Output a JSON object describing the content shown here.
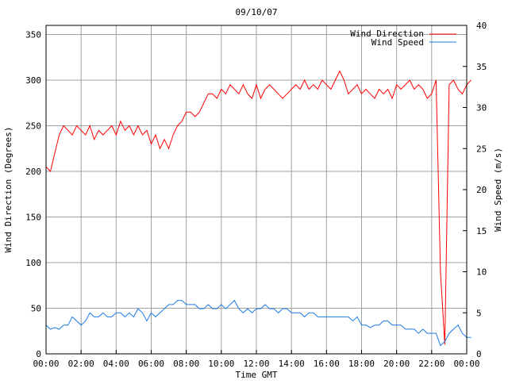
{
  "chart_data": {
    "type": "line",
    "title": "09/10/07",
    "xlabel": "Time GMT",
    "ylabel": "Wind Direction (Degrees)",
    "y2label": "Wind Speed (m/s)",
    "xlim": [
      0,
      24
    ],
    "ylim": [
      0,
      360
    ],
    "y2lim": [
      0,
      40
    ],
    "grid": true,
    "legend_position": "top-right",
    "x_ticks": [
      "00:00",
      "02:00",
      "04:00",
      "06:00",
      "08:00",
      "10:00",
      "12:00",
      "14:00",
      "16:00",
      "18:00",
      "20:00",
      "22:00",
      "00:00"
    ],
    "y_ticks": [
      0,
      50,
      100,
      150,
      200,
      250,
      300,
      350
    ],
    "y2_ticks": [
      0,
      5,
      10,
      15,
      20,
      25,
      30,
      35,
      40
    ],
    "x_step_hours": 0.25,
    "series": [
      {
        "name": "Wind Direction",
        "axis": "left",
        "color": "#ff0000",
        "values": [
          205,
          200,
          220,
          240,
          250,
          245,
          240,
          250,
          245,
          240,
          250,
          235,
          245,
          240,
          245,
          250,
          240,
          255,
          245,
          250,
          240,
          250,
          240,
          245,
          230,
          240,
          225,
          235,
          225,
          240,
          250,
          255,
          265,
          265,
          260,
          265,
          275,
          285,
          285,
          280,
          290,
          285,
          295,
          290,
          285,
          295,
          285,
          280,
          295,
          280,
          290,
          295,
          290,
          285,
          280,
          285,
          290,
          295,
          290,
          300,
          290,
          295,
          290,
          300,
          295,
          290,
          300,
          310,
          300,
          285,
          290,
          295,
          285,
          290,
          285,
          280,
          290,
          285,
          290,
          280,
          295,
          290,
          295,
          300,
          290,
          295,
          290,
          280,
          285,
          300,
          90,
          10,
          295,
          300,
          290,
          285,
          295,
          300
        ]
      },
      {
        "name": "Wind Speed",
        "axis": "right",
        "color": "#1a7ae8",
        "values": [
          3.5,
          3,
          3.2,
          3,
          3.5,
          3.5,
          4.5,
          4,
          3.5,
          4,
          5,
          4.5,
          4.5,
          5,
          4.5,
          4.5,
          5,
          5,
          4.5,
          5,
          4.5,
          5.5,
          5,
          4,
          5,
          4.5,
          5,
          5.5,
          6,
          6,
          6.5,
          6.5,
          6,
          6,
          6,
          5.5,
          5.5,
          6,
          5.5,
          5.5,
          6,
          5.5,
          6,
          6.5,
          5.5,
          5,
          5.5,
          5,
          5.5,
          5.5,
          6,
          5.5,
          5.5,
          5,
          5.5,
          5.5,
          5,
          5,
          5,
          4.5,
          5,
          5,
          4.5,
          4.5,
          4.5,
          4.5,
          4.5,
          4.5,
          4.5,
          4.5,
          4,
          4.5,
          3.5,
          3.5,
          3.2,
          3.5,
          3.5,
          4,
          4,
          3.5,
          3.5,
          3.5,
          3,
          3,
          3,
          2.5,
          3,
          2.5,
          2.5,
          2.5,
          1,
          1.5,
          2.5,
          3,
          3.5,
          2.5,
          2,
          2
        ]
      }
    ]
  }
}
